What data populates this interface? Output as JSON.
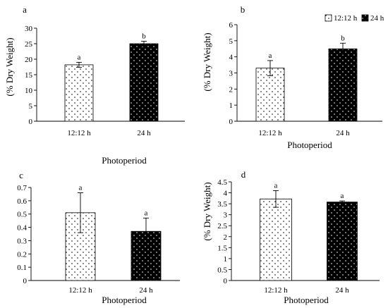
{
  "colors": {
    "axis": "#000000",
    "dark_bar": "#000000",
    "light_bar": "#ffffff",
    "dots_on_light": "#000000",
    "dots_on_dark": "#ffffff"
  },
  "legend": {
    "items": [
      "12:12 h",
      "24 h"
    ]
  },
  "chart_data": [
    {
      "type": "bar",
      "panel_label": "a",
      "categories": [
        "12:12 h",
        "24 h"
      ],
      "values": [
        18.2,
        25.0
      ],
      "errors": [
        0.8,
        0.8
      ],
      "significance": [
        "a",
        "b"
      ],
      "ylabel": "(% Dry Weight)",
      "xlabel": "Photoperiod",
      "ylim": [
        0,
        30
      ],
      "yticks": [
        0,
        5,
        10,
        15,
        20,
        25,
        30
      ],
      "grid": false
    },
    {
      "type": "bar",
      "panel_label": "b",
      "categories": [
        "12:12 h",
        "24 h"
      ],
      "values": [
        3.3,
        4.5
      ],
      "errors": [
        0.47,
        0.35
      ],
      "significance": [
        "a",
        "b"
      ],
      "ylabel": "(% Dry Weight)",
      "xlabel": "Photoperiod",
      "ylim": [
        0,
        6
      ],
      "yticks": [
        0,
        1,
        2,
        3,
        4,
        5,
        6
      ],
      "grid": false
    },
    {
      "type": "bar",
      "panel_label": "c",
      "categories": [
        "12:12 h",
        "24 h"
      ],
      "values": [
        0.51,
        0.37
      ],
      "errors": [
        0.15,
        0.1
      ],
      "significance": [
        "a",
        "a"
      ],
      "ylabel": "",
      "xlabel": "Photoperiod",
      "ylim": [
        0,
        0.7
      ],
      "yticks": [
        0,
        0.1,
        0.2,
        0.3,
        0.4,
        0.5,
        0.6,
        0.7
      ],
      "grid": false
    },
    {
      "type": "bar",
      "panel_label": "d",
      "categories": [
        "12:12 h",
        "24 h"
      ],
      "values": [
        3.72,
        3.58
      ],
      "errors": [
        0.38,
        0.05
      ],
      "significance": [
        "a",
        "a"
      ],
      "ylabel": "(% Dry Weight)",
      "xlabel": "Photoperiod",
      "ylim": [
        0,
        4.5
      ],
      "yticks": [
        0,
        0.5,
        1,
        1.5,
        2,
        2.5,
        3,
        3.5,
        4,
        4.5
      ],
      "grid": false
    }
  ]
}
